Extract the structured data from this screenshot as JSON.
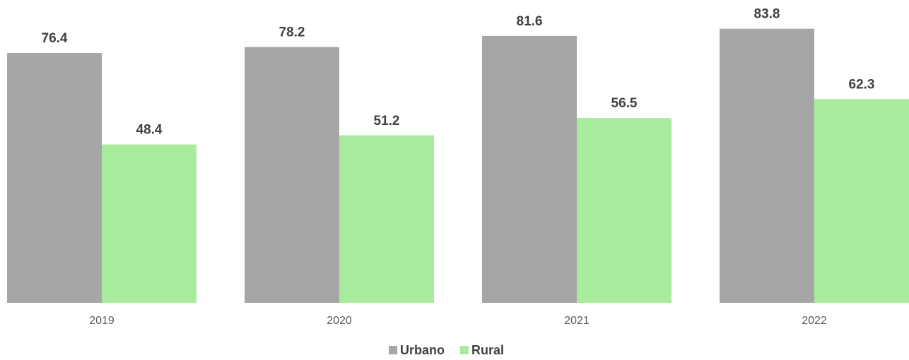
{
  "chart_data": {
    "type": "bar",
    "categories": [
      "2019",
      "2020",
      "2021",
      "2022"
    ],
    "series": [
      {
        "name": "Urbano",
        "color": "#a6a6a6",
        "values": [
          76.4,
          78.2,
          81.6,
          83.8
        ]
      },
      {
        "name": "Rural",
        "color": "#a9eb9c",
        "values": [
          48.4,
          51.2,
          56.5,
          62.3
        ]
      }
    ],
    "legend": "bottom"
  }
}
